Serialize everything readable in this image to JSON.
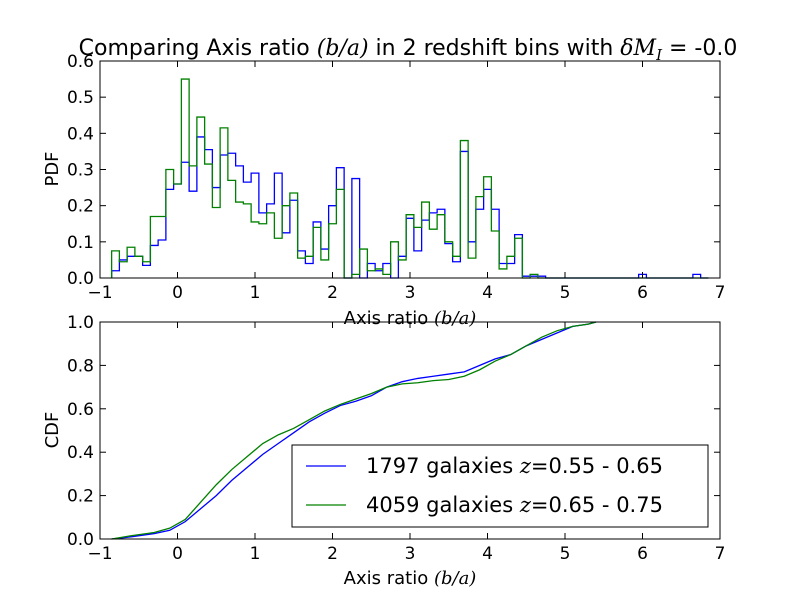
{
  "title": {
    "prefix": "Comparing Axis ratio ",
    "math": "(b/a)",
    "middle": " in 2 redshift bins with ",
    "math2": "δM",
    "sub": "I",
    "suffix": " = -0.0"
  },
  "chart_data": [
    {
      "type": "line",
      "drawstyle": "steps",
      "ylabel": "PDF",
      "xlabel_text": "Axis ratio ",
      "xlabel_math": "(b/a)",
      "xlim": [
        -1,
        7
      ],
      "ylim": [
        0,
        0.6
      ],
      "xticks": [
        -1,
        0,
        1,
        2,
        3,
        4,
        5,
        6,
        7
      ],
      "yticks": [
        0.0,
        0.1,
        0.2,
        0.3,
        0.4,
        0.5,
        0.6
      ],
      "xtick_labels": [
        "−1",
        "0",
        "1",
        "2",
        "3",
        "4",
        "5",
        "6",
        "7"
      ],
      "ytick_labels": [
        "0.0",
        "0.1",
        "0.2",
        "0.3",
        "0.4",
        "0.5",
        "0.6"
      ],
      "bin_start": -0.85,
      "bin_width": 0.1,
      "series": [
        {
          "color": "#0000ff",
          "values": [
            0.02,
            0.05,
            0.06,
            0.06,
            0.035,
            0.09,
            0.105,
            0.245,
            0.26,
            0.32,
            0.24,
            0.39,
            0.355,
            0.25,
            0.34,
            0.345,
            0.31,
            0.265,
            0.29,
            0.18,
            0.205,
            0.29,
            0.125,
            0.215,
            0.075,
            0.04,
            0.155,
            0.08,
            0.2,
            0.305,
            0.0,
            0.275,
            0.0,
            0.04,
            0.02,
            0.04,
            0.0,
            0.06,
            0.165,
            0.075,
            0.16,
            0.18,
            0.19,
            0.095,
            0.045,
            0.35,
            0.1,
            0.19,
            0.245,
            0.19,
            0.04,
            0.04,
            0.12,
            0.005,
            0.005,
            0.005,
            0.0,
            0.0,
            0.0,
            0.0,
            0.0,
            0.0,
            0.0,
            0.0,
            0.0,
            0.0,
            0.0,
            0.0,
            0.01,
            0.0,
            0.0,
            0.0,
            0.0,
            0.0,
            0.0,
            0.01,
            0.0
          ]
        },
        {
          "color": "#008000",
          "values": [
            0.075,
            0.045,
            0.085,
            0.06,
            0.045,
            0.17,
            0.17,
            0.3,
            0.26,
            0.55,
            0.31,
            0.445,
            0.315,
            0.195,
            0.415,
            0.27,
            0.21,
            0.205,
            0.155,
            0.15,
            0.18,
            0.11,
            0.2,
            0.235,
            0.055,
            0.06,
            0.14,
            0.05,
            0.15,
            0.245,
            0.0,
            0.01,
            0.08,
            0.02,
            0.025,
            0.01,
            0.1,
            0.05,
            0.175,
            0.14,
            0.21,
            0.135,
            0.175,
            0.1,
            0.06,
            0.38,
            0.055,
            0.225,
            0.28,
            0.13,
            0.025,
            0.06,
            0.11,
            0.0,
            0.01,
            0.0,
            0.0,
            0.0,
            0.0,
            0.0,
            0.0,
            0.0,
            0.0,
            0.0,
            0.0,
            0.0,
            0.0,
            0.0,
            0.0,
            0.0,
            0.0,
            0.0,
            0.0,
            0.0,
            0.0,
            0.0,
            0.0
          ]
        }
      ]
    },
    {
      "type": "line",
      "ylabel": "CDF",
      "xlabel_text": "Axis ratio ",
      "xlabel_math": "(b/a)",
      "xlim": [
        -1,
        7
      ],
      "ylim": [
        0,
        1.0
      ],
      "xticks": [
        -1,
        0,
        1,
        2,
        3,
        4,
        5,
        6,
        7
      ],
      "yticks": [
        0.0,
        0.2,
        0.4,
        0.6,
        0.8,
        1.0
      ],
      "xtick_labels": [
        "−1",
        "0",
        "1",
        "2",
        "3",
        "4",
        "5",
        "6",
        "7"
      ],
      "ytick_labels": [
        "0.0",
        "0.2",
        "0.4",
        "0.6",
        "0.8",
        "1.0"
      ],
      "legend_position": "lower right",
      "series": [
        {
          "name_text": "1797 galaxies ",
          "name_math": "z",
          "name_suffix": "=0.55 - 0.65",
          "color": "#0000ff",
          "x": [
            -0.85,
            -0.6,
            -0.3,
            -0.1,
            0.1,
            0.3,
            0.5,
            0.7,
            0.9,
            1.1,
            1.3,
            1.5,
            1.7,
            1.9,
            2.1,
            2.3,
            2.5,
            2.7,
            2.9,
            3.1,
            3.3,
            3.5,
            3.7,
            3.9,
            4.1,
            4.3,
            4.5,
            4.7,
            4.9,
            5.1,
            5.3,
            5.4
          ],
          "y": [
            0.0,
            0.01,
            0.025,
            0.04,
            0.08,
            0.14,
            0.2,
            0.27,
            0.33,
            0.39,
            0.44,
            0.49,
            0.54,
            0.58,
            0.615,
            0.635,
            0.66,
            0.7,
            0.725,
            0.74,
            0.75,
            0.76,
            0.77,
            0.8,
            0.83,
            0.85,
            0.89,
            0.92,
            0.95,
            0.98,
            0.99,
            1.0
          ]
        },
        {
          "name_text": "4059 galaxies ",
          "name_math": "z",
          "name_suffix": "=0.65 - 0.75",
          "color": "#008000",
          "x": [
            -0.85,
            -0.6,
            -0.3,
            -0.1,
            0.1,
            0.3,
            0.5,
            0.7,
            0.9,
            1.1,
            1.3,
            1.5,
            1.7,
            1.9,
            2.1,
            2.3,
            2.5,
            2.7,
            2.9,
            3.1,
            3.3,
            3.5,
            3.7,
            3.9,
            4.1,
            4.3,
            4.5,
            4.7,
            4.9,
            5.1,
            5.3,
            5.4
          ],
          "y": [
            0.0,
            0.015,
            0.03,
            0.05,
            0.09,
            0.17,
            0.25,
            0.32,
            0.38,
            0.44,
            0.48,
            0.51,
            0.55,
            0.59,
            0.62,
            0.645,
            0.67,
            0.7,
            0.715,
            0.72,
            0.73,
            0.735,
            0.75,
            0.78,
            0.82,
            0.85,
            0.89,
            0.93,
            0.96,
            0.98,
            0.99,
            1.0
          ]
        }
      ]
    }
  ]
}
